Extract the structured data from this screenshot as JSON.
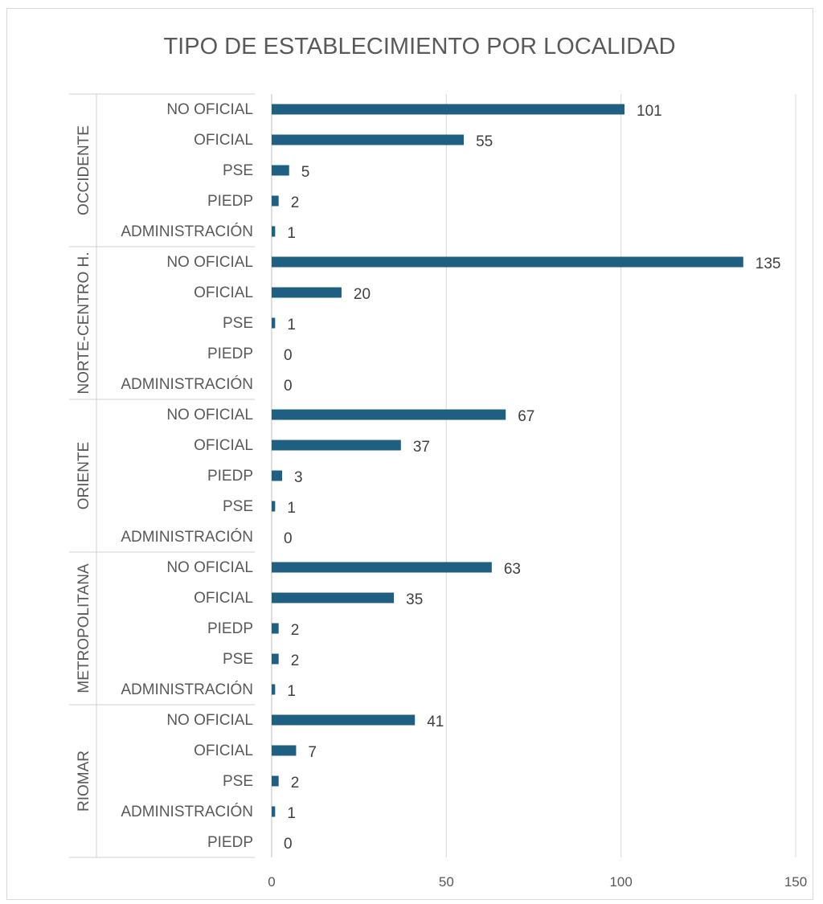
{
  "chart_data": {
    "type": "bar",
    "orientation": "horizontal",
    "title": "TIPO DE ESTABLECIMIENTO POR LOCALIDAD",
    "xlabel": "",
    "ylabel": "",
    "xlim": [
      0,
      150
    ],
    "xticks": [
      0,
      50,
      100,
      150
    ],
    "grid": true,
    "bar_color": "#1f5f82",
    "groups": [
      {
        "name": "OCCIDENTE",
        "items": [
          {
            "label": "NO OFICIAL",
            "value": 101
          },
          {
            "label": "OFICIAL",
            "value": 55
          },
          {
            "label": "PSE",
            "value": 5
          },
          {
            "label": "PIEDP",
            "value": 2
          },
          {
            "label": "ADMINISTRACIÓN",
            "value": 1
          }
        ]
      },
      {
        "name": "NORTE-CENTRO H.",
        "items": [
          {
            "label": "NO OFICIAL",
            "value": 135
          },
          {
            "label": "OFICIAL",
            "value": 20
          },
          {
            "label": "PSE",
            "value": 1
          },
          {
            "label": "PIEDP",
            "value": 0
          },
          {
            "label": "ADMINISTRACIÓN",
            "value": 0
          }
        ]
      },
      {
        "name": "ORIENTE",
        "items": [
          {
            "label": "NO OFICIAL",
            "value": 67
          },
          {
            "label": "OFICIAL",
            "value": 37
          },
          {
            "label": "PIEDP",
            "value": 3
          },
          {
            "label": "PSE",
            "value": 1
          },
          {
            "label": "ADMINISTRACIÓN",
            "value": 0
          }
        ]
      },
      {
        "name": "METROPOLITANA",
        "items": [
          {
            "label": "NO OFICIAL",
            "value": 63
          },
          {
            "label": "OFICIAL",
            "value": 35
          },
          {
            "label": "PIEDP",
            "value": 2
          },
          {
            "label": "PSE",
            "value": 2
          },
          {
            "label": "ADMINISTRACIÓN",
            "value": 1
          }
        ]
      },
      {
        "name": "RIOMAR",
        "items": [
          {
            "label": "NO OFICIAL",
            "value": 41
          },
          {
            "label": "OFICIAL",
            "value": 7
          },
          {
            "label": "PSE",
            "value": 2
          },
          {
            "label": "ADMINISTRACIÓN",
            "value": 1
          },
          {
            "label": "PIEDP",
            "value": 0
          }
        ]
      }
    ]
  }
}
